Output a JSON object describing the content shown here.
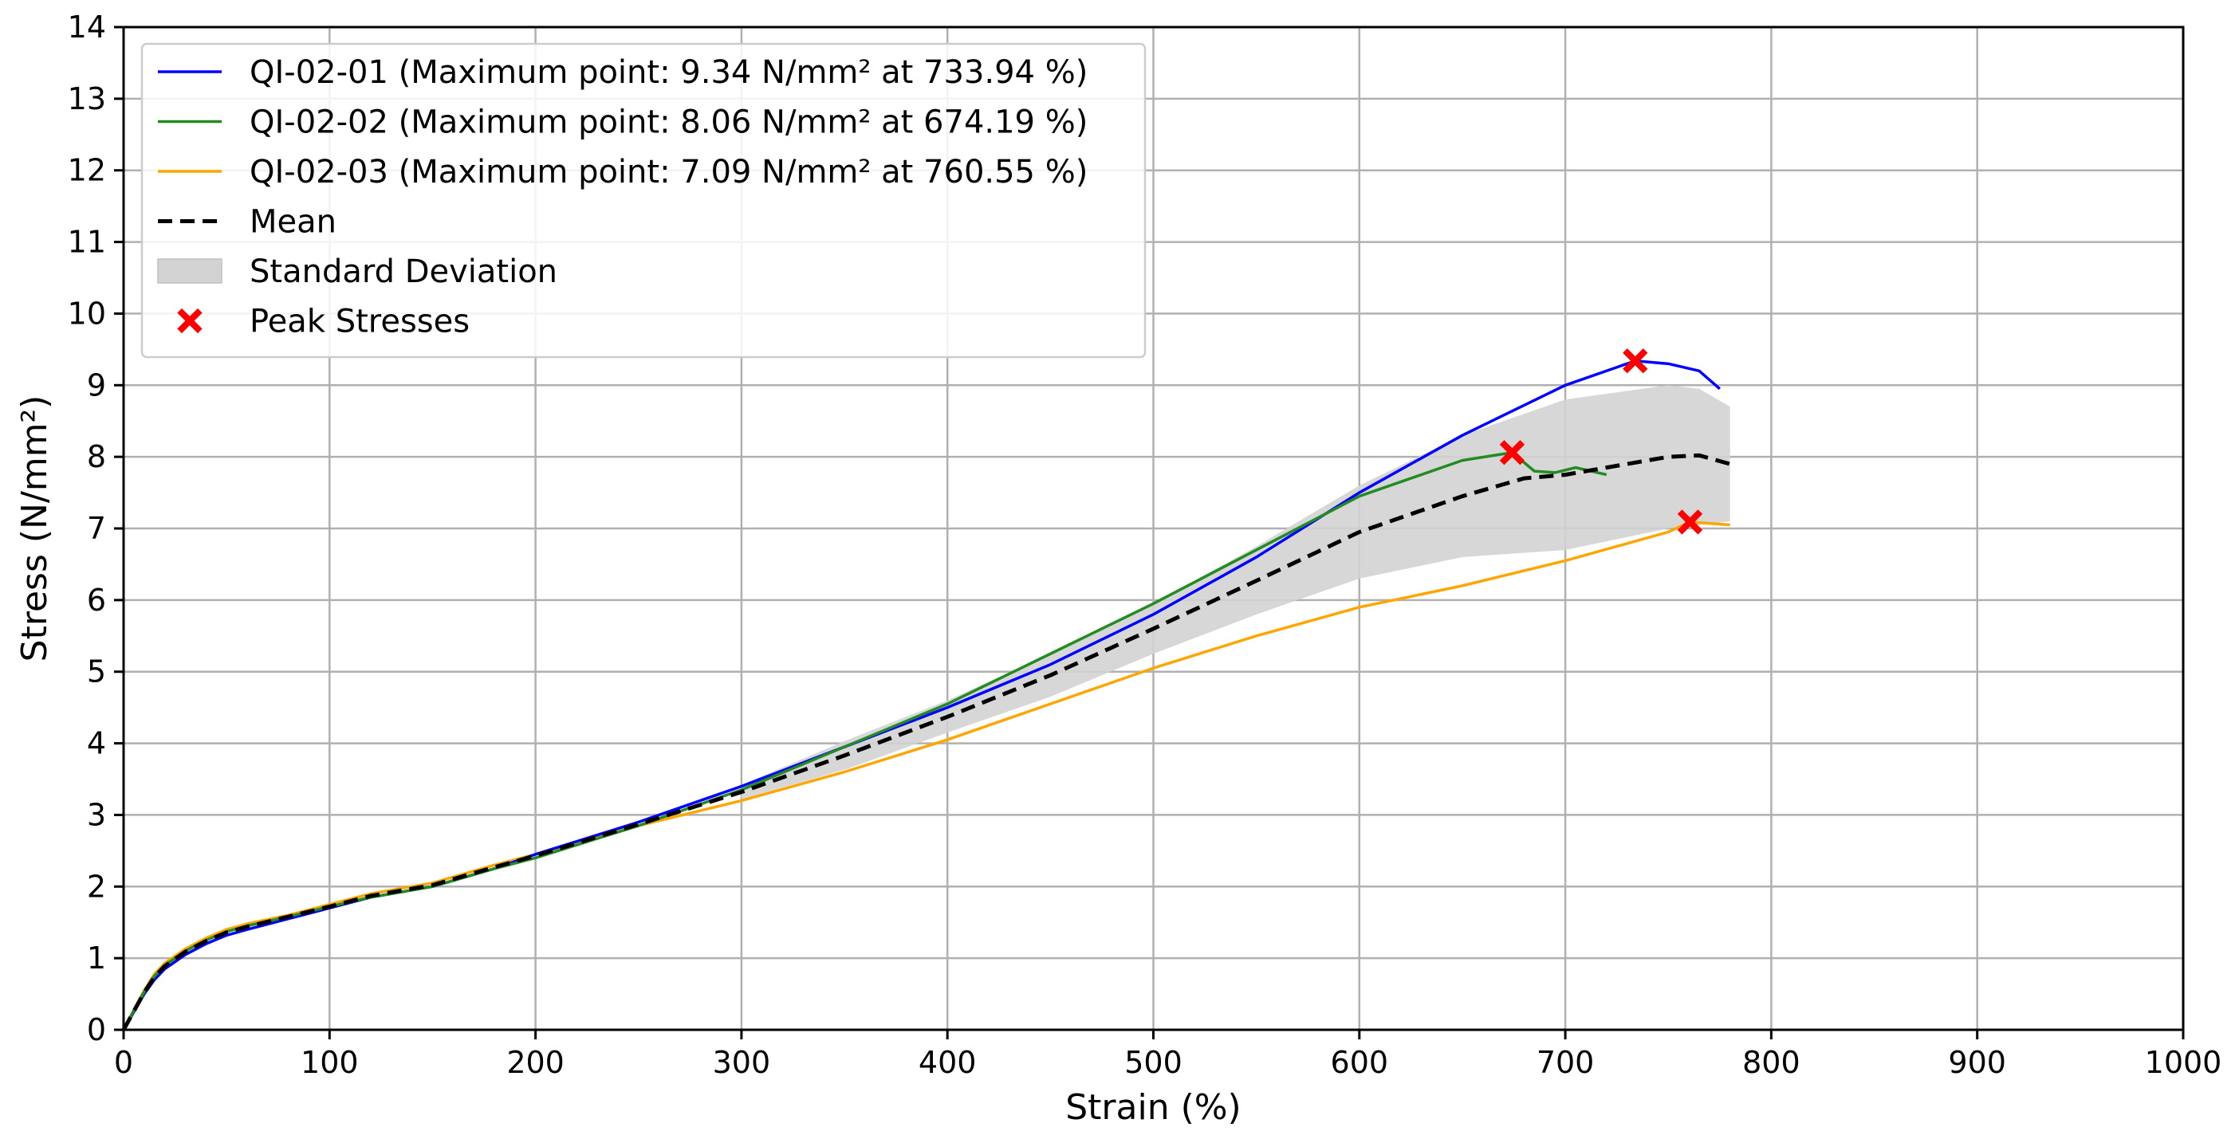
{
  "chart_data": {
    "type": "line",
    "title": "",
    "xlabel": "Strain (%)",
    "ylabel": "Stress (N/mm²)",
    "xlim": [
      0,
      1000
    ],
    "ylim": [
      0,
      14
    ],
    "x_ticks": [
      0,
      100,
      200,
      300,
      400,
      500,
      600,
      700,
      800,
      900,
      1000
    ],
    "y_ticks": [
      0,
      1,
      2,
      3,
      4,
      5,
      6,
      7,
      8,
      9,
      10,
      11,
      12,
      13,
      14
    ],
    "grid": true,
    "legend_position": "top-left",
    "series": [
      {
        "name": "QI-02-01",
        "legend_label": "QI-02-01 (Maximum point: 9.34 N/mm² at 733.94 %)",
        "color": "#0000ff",
        "style": "solid",
        "points": [
          [
            0,
            0
          ],
          [
            5,
            0.25
          ],
          [
            10,
            0.5
          ],
          [
            15,
            0.7
          ],
          [
            20,
            0.85
          ],
          [
            30,
            1.05
          ],
          [
            40,
            1.2
          ],
          [
            50,
            1.32
          ],
          [
            60,
            1.4
          ],
          [
            80,
            1.55
          ],
          [
            100,
            1.7
          ],
          [
            120,
            1.85
          ],
          [
            150,
            2.0
          ],
          [
            180,
            2.25
          ],
          [
            200,
            2.45
          ],
          [
            250,
            2.9
          ],
          [
            300,
            3.4
          ],
          [
            350,
            3.95
          ],
          [
            400,
            4.5
          ],
          [
            450,
            5.1
          ],
          [
            500,
            5.8
          ],
          [
            550,
            6.6
          ],
          [
            600,
            7.5
          ],
          [
            650,
            8.3
          ],
          [
            700,
            9.0
          ],
          [
            733.94,
            9.34
          ],
          [
            750,
            9.3
          ],
          [
            765,
            9.2
          ],
          [
            775,
            8.95
          ]
        ]
      },
      {
        "name": "QI-02-02",
        "legend_label": "QI-02-02 (Maximum point: 8.06 N/mm² at 674.19 %)",
        "color": "#228b22",
        "style": "solid",
        "points": [
          [
            0,
            0
          ],
          [
            5,
            0.27
          ],
          [
            10,
            0.53
          ],
          [
            15,
            0.75
          ],
          [
            20,
            0.9
          ],
          [
            30,
            1.1
          ],
          [
            40,
            1.25
          ],
          [
            50,
            1.37
          ],
          [
            60,
            1.45
          ],
          [
            80,
            1.58
          ],
          [
            100,
            1.72
          ],
          [
            120,
            1.85
          ],
          [
            150,
            2.0
          ],
          [
            180,
            2.25
          ],
          [
            200,
            2.4
          ],
          [
            250,
            2.85
          ],
          [
            300,
            3.35
          ],
          [
            350,
            3.95
          ],
          [
            400,
            4.55
          ],
          [
            450,
            5.25
          ],
          [
            500,
            5.95
          ],
          [
            550,
            6.7
          ],
          [
            600,
            7.45
          ],
          [
            650,
            7.95
          ],
          [
            674.19,
            8.06
          ],
          [
            685,
            7.8
          ],
          [
            695,
            7.78
          ],
          [
            705,
            7.85
          ],
          [
            720,
            7.75
          ]
        ]
      },
      {
        "name": "QI-02-03",
        "legend_label": "QI-02-03 (Maximum point: 7.09 N/mm² at 760.55 %)",
        "color": "#ffa500",
        "style": "solid",
        "points": [
          [
            0,
            0
          ],
          [
            5,
            0.28
          ],
          [
            10,
            0.55
          ],
          [
            15,
            0.78
          ],
          [
            20,
            0.93
          ],
          [
            30,
            1.13
          ],
          [
            40,
            1.28
          ],
          [
            50,
            1.4
          ],
          [
            60,
            1.48
          ],
          [
            80,
            1.6
          ],
          [
            100,
            1.75
          ],
          [
            120,
            1.9
          ],
          [
            150,
            2.05
          ],
          [
            180,
            2.3
          ],
          [
            200,
            2.45
          ],
          [
            250,
            2.85
          ],
          [
            300,
            3.2
          ],
          [
            350,
            3.6
          ],
          [
            400,
            4.05
          ],
          [
            450,
            4.55
          ],
          [
            500,
            5.05
          ],
          [
            550,
            5.5
          ],
          [
            600,
            5.9
          ],
          [
            650,
            6.2
          ],
          [
            700,
            6.55
          ],
          [
            750,
            6.95
          ],
          [
            760.55,
            7.09
          ],
          [
            780,
            7.05
          ]
        ]
      },
      {
        "name": "Mean",
        "legend_label": "Mean",
        "color": "#000000",
        "style": "dashed",
        "points": [
          [
            0,
            0
          ],
          [
            5,
            0.26
          ],
          [
            10,
            0.52
          ],
          [
            15,
            0.74
          ],
          [
            20,
            0.89
          ],
          [
            30,
            1.09
          ],
          [
            40,
            1.24
          ],
          [
            50,
            1.36
          ],
          [
            60,
            1.44
          ],
          [
            80,
            1.58
          ],
          [
            100,
            1.72
          ],
          [
            120,
            1.87
          ],
          [
            150,
            2.02
          ],
          [
            180,
            2.27
          ],
          [
            200,
            2.43
          ],
          [
            250,
            2.87
          ],
          [
            300,
            3.32
          ],
          [
            350,
            3.83
          ],
          [
            400,
            4.37
          ],
          [
            450,
            4.95
          ],
          [
            500,
            5.6
          ],
          [
            550,
            6.27
          ],
          [
            600,
            6.95
          ],
          [
            650,
            7.45
          ],
          [
            680,
            7.7
          ],
          [
            700,
            7.75
          ],
          [
            720,
            7.85
          ],
          [
            750,
            8.0
          ],
          [
            765,
            8.02
          ],
          [
            780,
            7.9
          ]
        ]
      }
    ],
    "std_band": {
      "name": "Standard Deviation",
      "color": "#d3d3d3",
      "upper": [
        [
          300,
          3.42
        ],
        [
          350,
          4.03
        ],
        [
          400,
          4.6
        ],
        [
          450,
          5.25
        ],
        [
          500,
          5.95
        ],
        [
          550,
          6.75
        ],
        [
          600,
          7.6
        ],
        [
          650,
          8.3
        ],
        [
          700,
          8.8
        ],
        [
          750,
          9.0
        ],
        [
          765,
          8.95
        ],
        [
          780,
          8.7
        ]
      ],
      "lower": [
        [
          780,
          7.1
        ],
        [
          750,
          7.0
        ],
        [
          700,
          6.7
        ],
        [
          650,
          6.6
        ],
        [
          600,
          6.3
        ],
        [
          550,
          5.8
        ],
        [
          500,
          5.25
        ],
        [
          450,
          4.65
        ],
        [
          400,
          4.15
        ],
        [
          350,
          3.63
        ],
        [
          300,
          3.22
        ]
      ]
    },
    "peak_stresses": {
      "name": "Peak Stresses",
      "color": "#ff0000",
      "points": [
        [
          733.94,
          9.34
        ],
        [
          674.19,
          8.06
        ],
        [
          760.55,
          7.09
        ]
      ]
    }
  }
}
